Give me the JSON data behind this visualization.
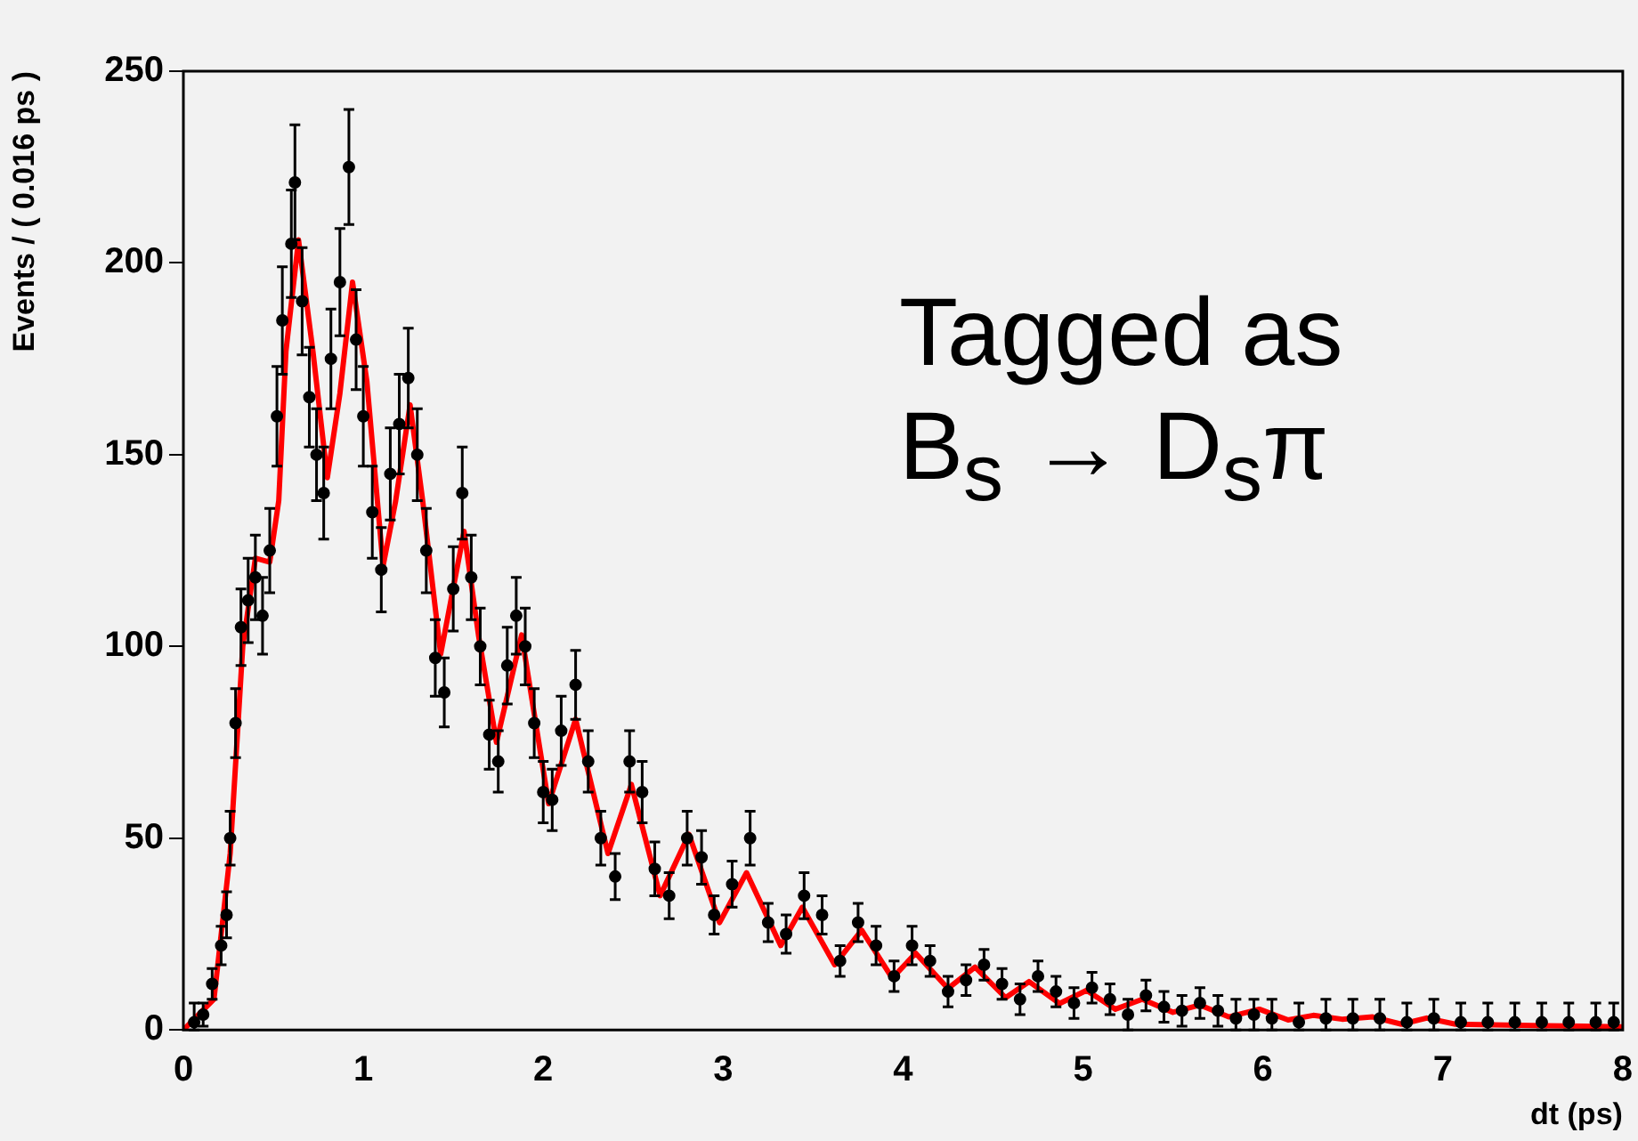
{
  "chart_data": {
    "type": "scatter",
    "xlabel": "dt (ps)",
    "ylabel": "Events / ( 0.016 ps )",
    "xlim": [
      0,
      8
    ],
    "xticks": [
      0,
      1,
      2,
      3,
      4,
      5,
      6,
      7,
      8
    ],
    "ylim": [
      0,
      250
    ],
    "yticks": [
      0,
      50,
      100,
      150,
      200,
      250
    ],
    "grid": false,
    "legend": false,
    "annotations": [
      "Tagged as\nB$_{s}$ → D$_{s}$π"
    ],
    "series": [
      {
        "type": "scatter",
        "color": "#000000",
        "marker": "circle",
        "x": [
          0.06,
          0.11,
          0.16,
          0.21,
          0.24,
          0.26,
          0.29,
          0.32,
          0.36,
          0.4,
          0.44,
          0.48,
          0.52,
          0.55,
          0.6,
          0.62,
          0.66,
          0.7,
          0.74,
          0.78,
          0.82,
          0.87,
          0.92,
          0.96,
          1.0,
          1.05,
          1.1,
          1.15,
          1.2,
          1.25,
          1.3,
          1.35,
          1.4,
          1.45,
          1.5,
          1.55,
          1.6,
          1.65,
          1.7,
          1.75,
          1.8,
          1.85,
          1.9,
          1.95,
          2.0,
          2.05,
          2.1,
          2.18,
          2.25,
          2.32,
          2.4,
          2.48,
          2.55,
          2.62,
          2.7,
          2.8,
          2.88,
          2.95,
          3.05,
          3.15,
          3.25,
          3.35,
          3.45,
          3.55,
          3.65,
          3.75,
          3.85,
          3.95,
          4.05,
          4.15,
          4.25,
          4.35,
          4.45,
          4.55,
          4.65,
          4.75,
          4.85,
          4.95,
          5.05,
          5.15,
          5.25,
          5.35,
          5.45,
          5.55,
          5.65,
          5.75,
          5.85,
          5.95,
          6.05,
          6.2,
          6.35,
          6.5,
          6.65,
          6.8,
          6.95,
          7.1,
          7.25,
          7.4,
          7.55,
          7.7,
          7.85,
          7.95
        ],
        "values": [
          2,
          4,
          12,
          22,
          30,
          50,
          80,
          105,
          112,
          118,
          108,
          125,
          160,
          185,
          205,
          221,
          190,
          165,
          150,
          140,
          175,
          195,
          225,
          180,
          160,
          135,
          120,
          145,
          158,
          170,
          150,
          125,
          97,
          88,
          115,
          140,
          118,
          100,
          77,
          70,
          95,
          108,
          100,
          80,
          62,
          60,
          78,
          90,
          70,
          50,
          40,
          70,
          62,
          42,
          35,
          50,
          45,
          30,
          38,
          50,
          28,
          25,
          35,
          30,
          18,
          28,
          22,
          14,
          22,
          18,
          10,
          13,
          17,
          12,
          8,
          14,
          10,
          7,
          11,
          8,
          4,
          9,
          6,
          5,
          7,
          5,
          3,
          4,
          3,
          2,
          3,
          3,
          3,
          2,
          3,
          2,
          2,
          2,
          2,
          2,
          2,
          2
        ],
        "errors": [
          [
            0,
            7
          ],
          3,
          4,
          5,
          6,
          7,
          9,
          10,
          11,
          11,
          10,
          11,
          13,
          14,
          14,
          15,
          14,
          13,
          12,
          12,
          13,
          14,
          15,
          13,
          13,
          12,
          11,
          12,
          13,
          13,
          12,
          11,
          10,
          9,
          11,
          12,
          11,
          10,
          9,
          8,
          10,
          10,
          10,
          9,
          8,
          8,
          9,
          9,
          8,
          7,
          6,
          8,
          8,
          7,
          6,
          7,
          7,
          5,
          6,
          7,
          5,
          5,
          6,
          5,
          4,
          5,
          5,
          4,
          5,
          4,
          4,
          4,
          4,
          4,
          4,
          4,
          4,
          4,
          4,
          4,
          4,
          4,
          4,
          4,
          4,
          4,
          [
            0,
            8
          ],
          4,
          [
            0,
            8
          ],
          [
            0,
            7
          ],
          [
            0,
            8
          ],
          [
            0,
            8
          ],
          [
            0,
            8
          ],
          [
            0,
            7
          ],
          [
            0,
            8
          ],
          [
            0,
            7
          ],
          [
            0,
            7
          ],
          [
            0,
            7
          ],
          [
            0,
            7
          ],
          [
            0,
            7
          ],
          [
            0,
            7
          ],
          [
            0,
            7
          ]
        ]
      },
      {
        "type": "line",
        "color": "#ff0000",
        "x": [
          0,
          0.17,
          0.26,
          0.33,
          0.4,
          0.48,
          0.53,
          0.57,
          0.64,
          0.72,
          0.8,
          0.87,
          0.94,
          1.02,
          1.11,
          1.18,
          1.26,
          1.33,
          1.43,
          1.56,
          1.64,
          1.74,
          1.88,
          2.03,
          2.18,
          2.36,
          2.49,
          2.65,
          2.81,
          2.98,
          3.13,
          3.32,
          3.44,
          3.62,
          3.77,
          3.94,
          4.07,
          4.25,
          4.4,
          4.57,
          4.7,
          4.87,
          5.02,
          5.18,
          5.33,
          5.5,
          5.65,
          5.81,
          5.98,
          6.14,
          6.28,
          6.44,
          6.61,
          6.77,
          6.91,
          7.07,
          7.57,
          8.0
        ],
        "values": [
          0,
          8,
          46,
          100,
          123,
          122,
          138,
          177,
          206,
          177,
          144,
          166,
          195,
          169,
          121,
          138,
          163,
          138,
          98,
          130,
          103,
          75,
          103,
          59,
          81,
          46,
          64,
          35,
          51,
          28,
          41,
          22,
          32,
          17,
          26,
          13.5,
          20,
          10.8,
          16.4,
          8.4,
          12.6,
          6.9,
          10.3,
          5.4,
          8,
          4.6,
          6.5,
          3.4,
          5.4,
          2.6,
          3.8,
          2.8,
          3.4,
          1.5,
          3.1,
          1.5,
          1.1,
          0.8
        ]
      }
    ]
  }
}
